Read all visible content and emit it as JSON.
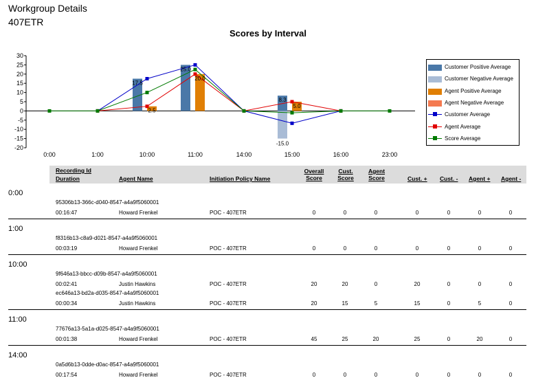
{
  "header": {
    "title": "Workgroup Details",
    "subtitle": "407ETR"
  },
  "chart_data": {
    "type": "bar",
    "title": "Scores by Interval",
    "categories": [
      "0:00",
      "1:00",
      "10:00",
      "11:00",
      "14:00",
      "15:00",
      "16:00",
      "23:00"
    ],
    "ylim": [
      -20,
      30
    ],
    "yticks": [
      30,
      25,
      20,
      15,
      10,
      5,
      0,
      -5,
      -10,
      -15,
      -20
    ],
    "legend_position": "right",
    "series": [
      {
        "name": "Customer Positive Average",
        "kind": "bar",
        "color": "#4a78a8",
        "values": [
          null,
          null,
          17.5,
          25.0,
          null,
          8.3,
          null,
          null
        ]
      },
      {
        "name": "Customer Negative Average",
        "kind": "bar",
        "color": "#a9bcd6",
        "values": [
          null,
          null,
          null,
          null,
          null,
          -15.0,
          null,
          null
        ]
      },
      {
        "name": "Agent Positive Average",
        "kind": "bar",
        "color": "#e07f05",
        "values": [
          null,
          null,
          2.5,
          20.0,
          null,
          5.0,
          null,
          null
        ]
      },
      {
        "name": "Agent Negative Average",
        "kind": "bar",
        "color": "#f47a50",
        "values": [
          null,
          null,
          null,
          null,
          null,
          null,
          null,
          null
        ]
      },
      {
        "name": "Customer Average",
        "kind": "line",
        "color": "#0000c8",
        "values": [
          null,
          0,
          17.5,
          25.0,
          0,
          -6.7,
          0,
          null
        ]
      },
      {
        "name": "Agent Average",
        "kind": "line",
        "color": "#e00000",
        "values": [
          null,
          0,
          2.5,
          20.0,
          0,
          5.0,
          0,
          null
        ]
      },
      {
        "name": "Score Average",
        "kind": "line",
        "color": "#007a00",
        "values": [
          0,
          0,
          10.0,
          22.5,
          0,
          -1.0,
          0,
          0
        ]
      }
    ],
    "data_labels": [
      {
        "category": "10:00",
        "series": "Customer Positive Average",
        "text": "17.5"
      },
      {
        "category": "10:00",
        "series": "Agent Positive Average",
        "text": "2.5"
      },
      {
        "category": "11:00",
        "series": "Customer Positive Average",
        "text": "25.0"
      },
      {
        "category": "11:00",
        "series": "Agent Positive Average",
        "text": "20.0"
      },
      {
        "category": "15:00",
        "series": "Customer Positive Average",
        "text": "8.3"
      },
      {
        "category": "15:00",
        "series": "Agent Positive Average",
        "text": "5.0"
      },
      {
        "category": "15:00",
        "series": "Customer Negative Average",
        "text": "-15.0"
      }
    ]
  },
  "table": {
    "headers": {
      "recording_id": "Recording Id",
      "duration": "Duration",
      "agent_name": "Agent Name",
      "policy": "Initiation Policy Name",
      "overall1": "Overall",
      "overall2": "Score",
      "cust1": "Cust.",
      "cust2": "Score",
      "agent1": "Agent",
      "agent2": "Score",
      "cust_plus": "Cust. +",
      "cust_minus": "Cust. -",
      "agent_plus": "Agent +",
      "agent_minus": "Agent -"
    },
    "groups": [
      {
        "interval": "0:00",
        "rows": [
          {
            "id": "95306b13-366c-d040-8547-a4a9f5060001",
            "duration": "00:16:47",
            "agent": "Howard Frenkel",
            "policy": "POC - 407ETR",
            "overall": "0",
            "cust": "0",
            "agent_score": "0",
            "cust_plus": "0",
            "cust_minus": "0",
            "agent_plus": "0",
            "agent_minus": "0"
          }
        ]
      },
      {
        "interval": "1:00",
        "rows": [
          {
            "id": "f8316b13-c8a9-d021-8547-a4a9f5060001",
            "duration": "00:03:19",
            "agent": "Howard Frenkel",
            "policy": "POC - 407ETR",
            "overall": "0",
            "cust": "0",
            "agent_score": "0",
            "cust_plus": "0",
            "cust_minus": "0",
            "agent_plus": "0",
            "agent_minus": "0"
          }
        ]
      },
      {
        "interval": "10:00",
        "rows": [
          {
            "id": "9f646a13-bbcc-d09b-8547-a4a9f5060001",
            "duration": "00:02:41",
            "agent": "Justin Hawkins",
            "policy": "POC - 407ETR",
            "overall": "20",
            "cust": "20",
            "agent_score": "0",
            "cust_plus": "20",
            "cust_minus": "0",
            "agent_plus": "0",
            "agent_minus": "0"
          },
          {
            "id": "ec646a13-bd2a-d035-8547-a4a9f5060001",
            "duration": "00:00:34",
            "agent": "Justin Hawkins",
            "policy": "POC - 407ETR",
            "overall": "20",
            "cust": "15",
            "agent_score": "5",
            "cust_plus": "15",
            "cust_minus": "0",
            "agent_plus": "5",
            "agent_minus": "0"
          }
        ]
      },
      {
        "interval": "11:00",
        "rows": [
          {
            "id": "77676a13-5a1a-d025-8547-a4a9f5060001",
            "duration": "00:01:38",
            "agent": "Howard Frenkel",
            "policy": "POC - 407ETR",
            "overall": "45",
            "cust": "25",
            "agent_score": "20",
            "cust_plus": "25",
            "cust_minus": "0",
            "agent_plus": "20",
            "agent_minus": "0"
          }
        ]
      },
      {
        "interval": "14:00",
        "rows": [
          {
            "id": "0a5d6b13-0dde-d0ac-8547-a4a9f5060001",
            "duration": "00:17:54",
            "agent": "Howard Frenkel",
            "policy": "POC - 407ETR",
            "overall": "0",
            "cust": "0",
            "agent_score": "0",
            "cust_plus": "0",
            "cust_minus": "0",
            "agent_plus": "0",
            "agent_minus": "0"
          }
        ]
      }
    ]
  }
}
